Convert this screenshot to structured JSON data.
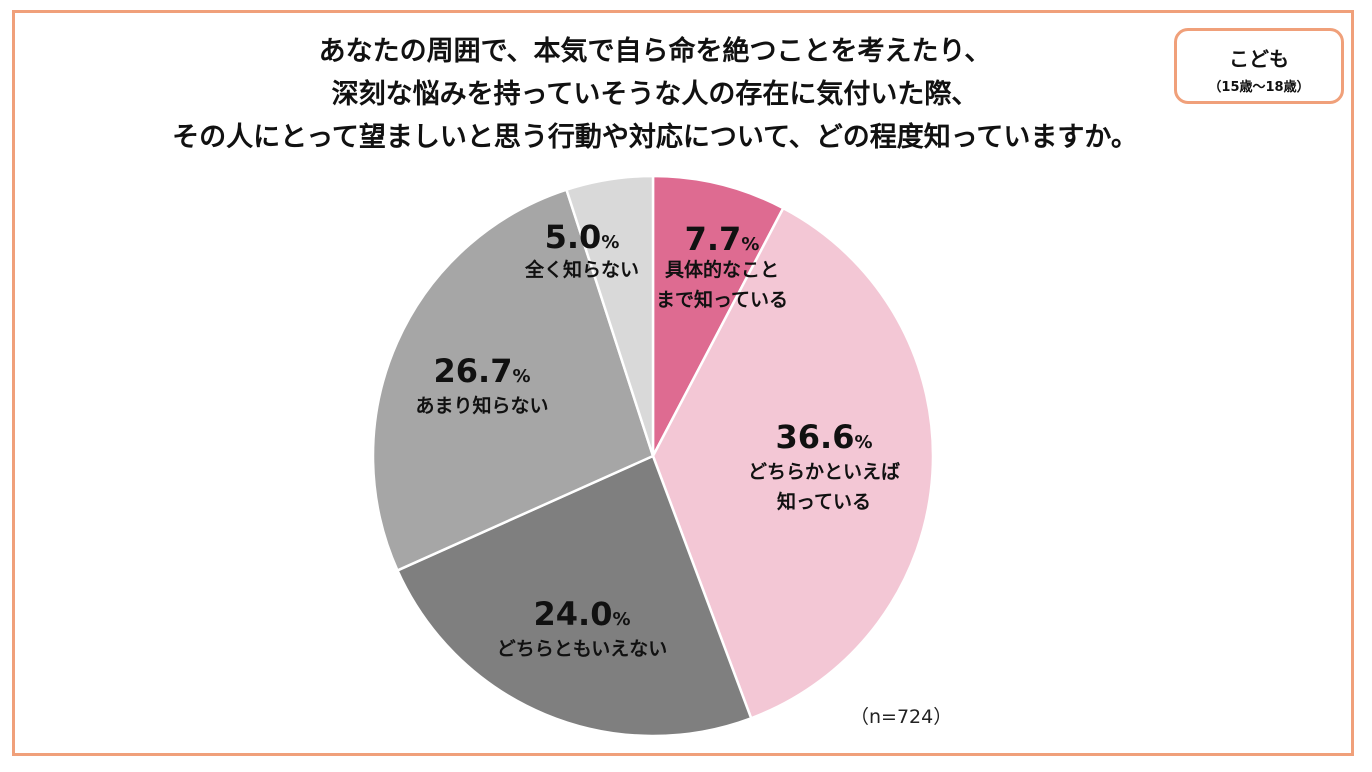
{
  "title_lines": [
    "あなたの周囲で、本気で自ら命を絶つことを考えたり、",
    "深刻な悩みを持っていそうな人の存在に気付いた際、",
    "その人にとって望ましいと思う行動や対応について、どの程度知っていますか。"
  ],
  "badge": {
    "label": "こども",
    "sublabel": "（15歳～18歳）"
  },
  "sample_note": "（n=724）",
  "chart_data": {
    "type": "pie",
    "title": "あなたの周囲で、本気で自ら命を絶つことを考えたり、深刻な悩みを持っていそうな人の存在に気付いた際、その人にとって望ましいと思う行動や対応について、どの程度知っていますか。",
    "slices": [
      {
        "label_lines": [
          "具体的なこと",
          "まで知っている"
        ],
        "value": 7.7,
        "value_text": "7.7",
        "color": "#de6b91"
      },
      {
        "label_lines": [
          "どちらかといえば",
          "知っている"
        ],
        "value": 36.6,
        "value_text": "36.6",
        "color": "#f3c7d5"
      },
      {
        "label_lines": [
          "どちらともいえない"
        ],
        "value": 24.0,
        "value_text": "24.0",
        "color": "#7f7f7f"
      },
      {
        "label_lines": [
          "あまり知らない"
        ],
        "value": 26.7,
        "value_text": "26.7",
        "color": "#a6a6a6"
      },
      {
        "label_lines": [
          "全く知らない"
        ],
        "value": 5.0,
        "value_text": "5.0",
        "color": "#d9d9d9"
      }
    ],
    "unit": "%",
    "start": "12 o'clock",
    "direction": "clockwise",
    "legend": "none"
  }
}
